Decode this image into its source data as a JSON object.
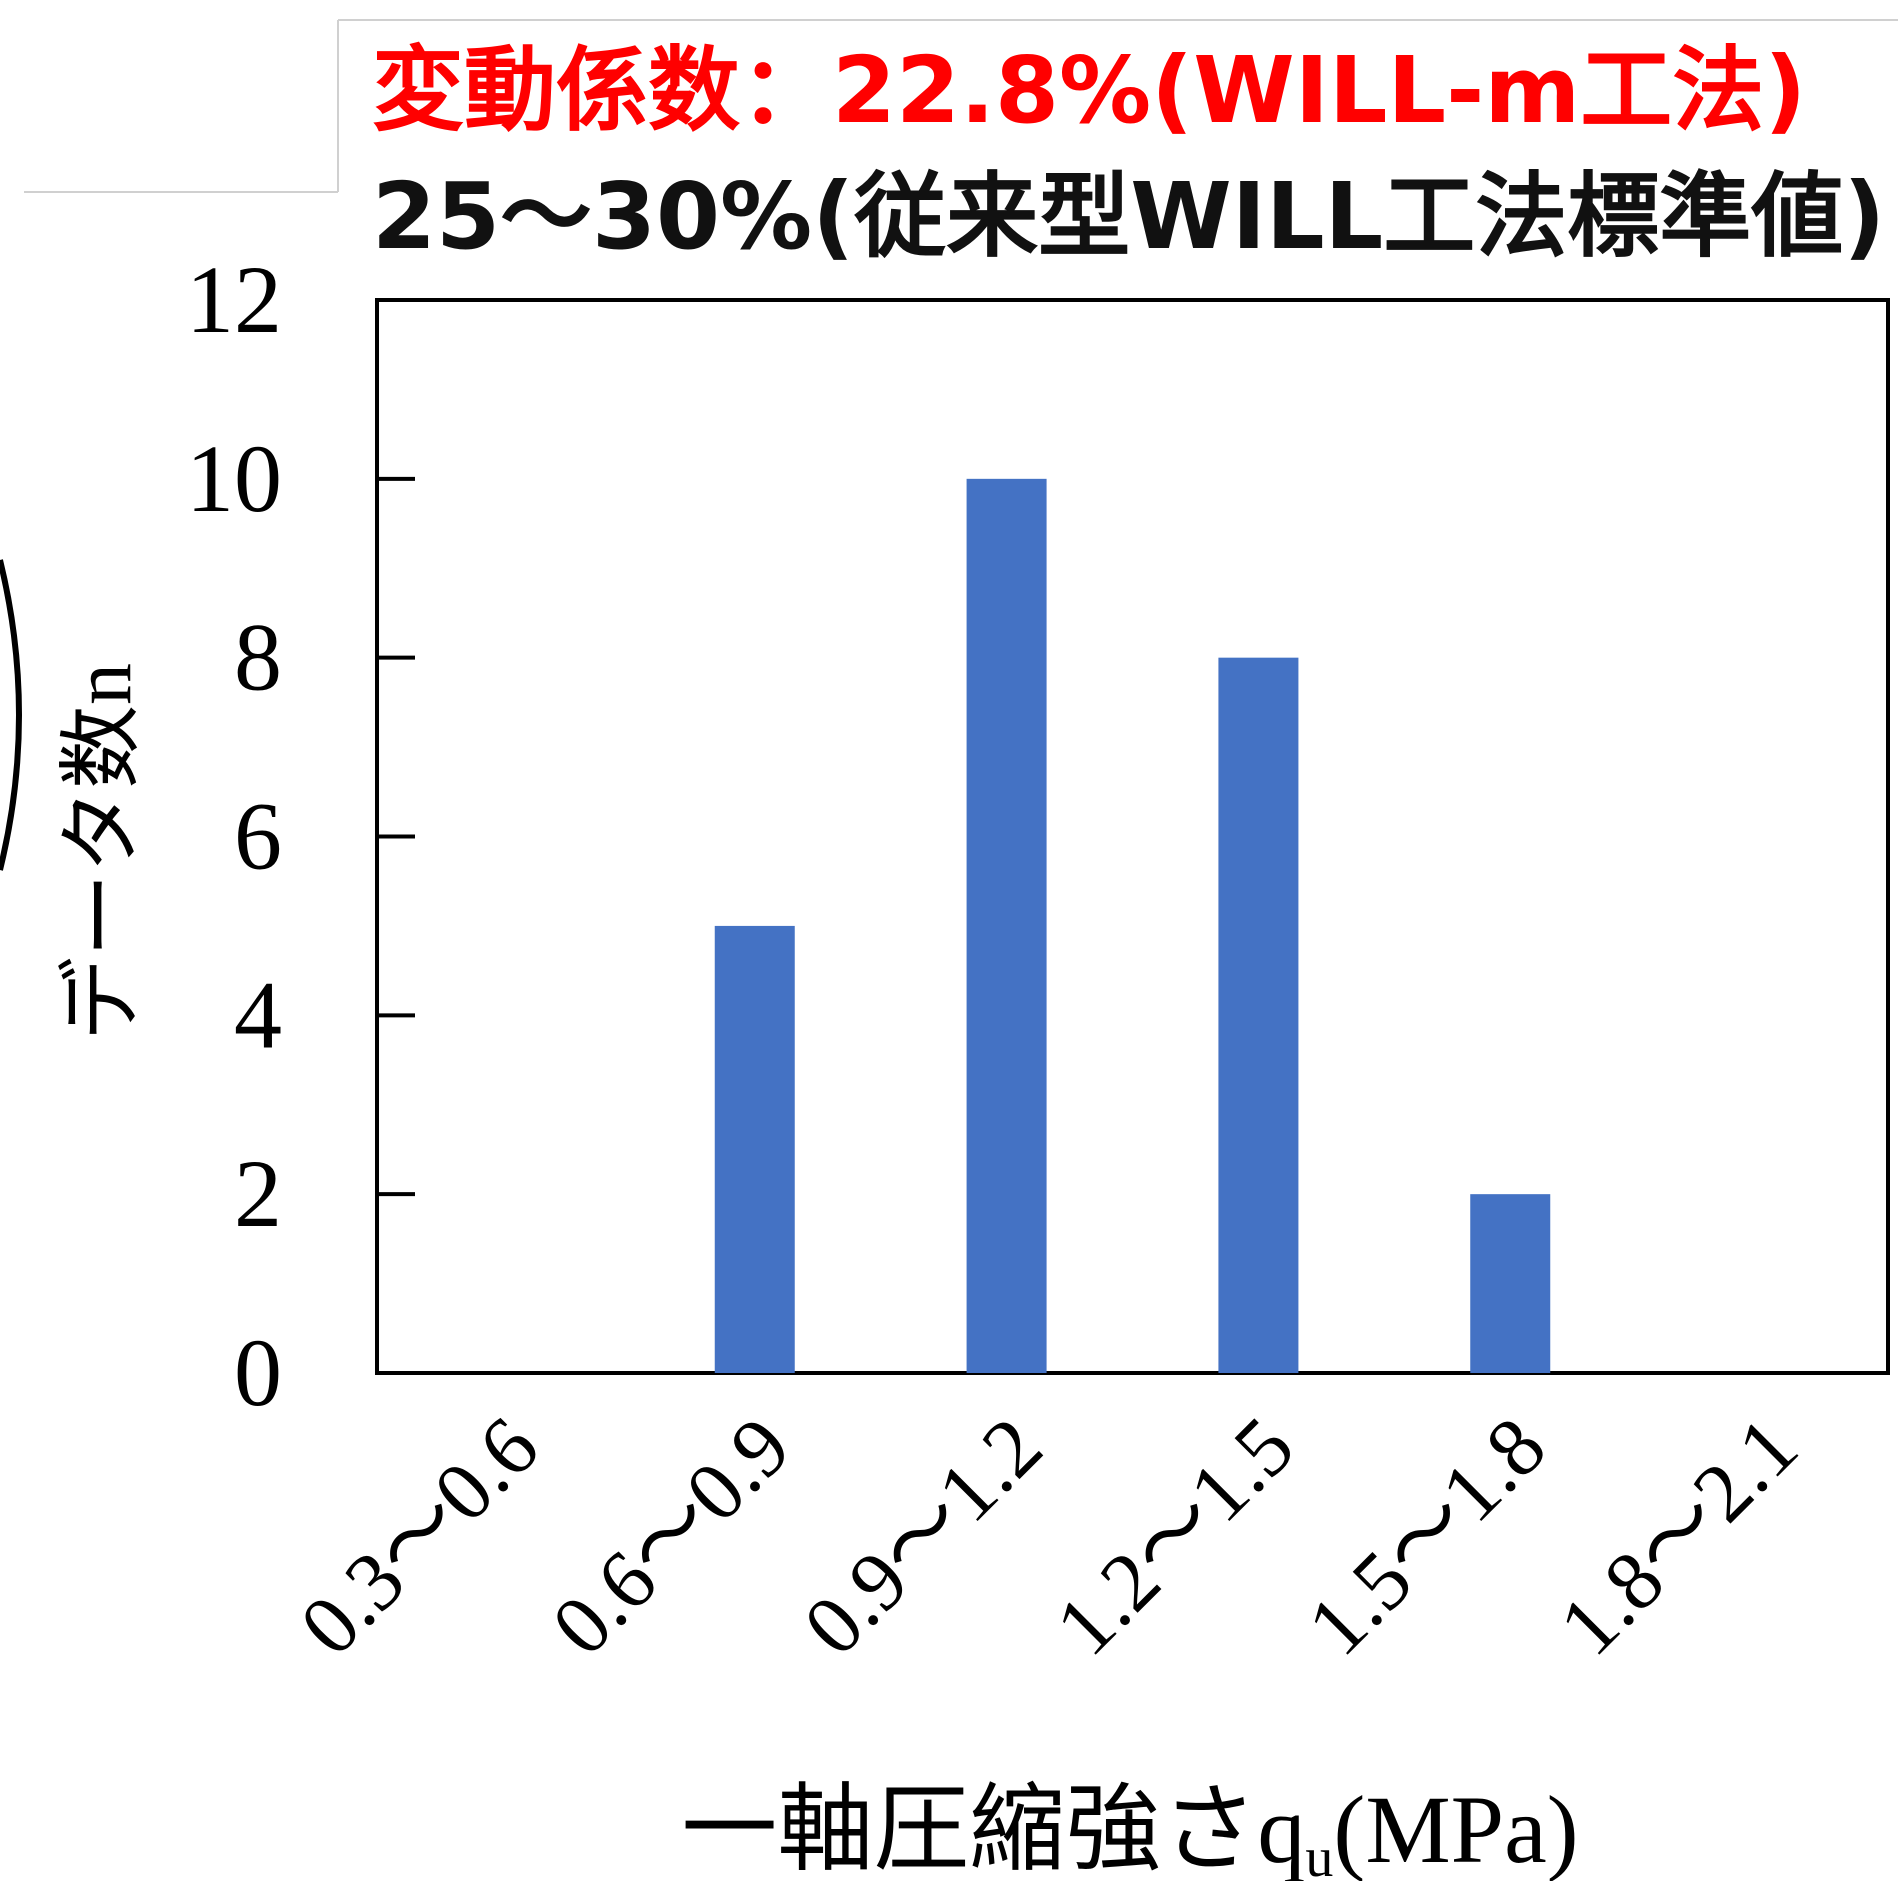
{
  "annotation": {
    "line1": "変動係数：22.8%(WILL-m工法)",
    "line2": "25〜30%(従来型WILL工法標準値)",
    "line1_color": "#ff0000",
    "line2_color": "#111111"
  },
  "chart_data": {
    "type": "bar",
    "categories": [
      "0.3〜0.6",
      "0.6〜0.9",
      "0.9〜1.2",
      "1.2〜1.5",
      "1.5〜1.8",
      "1.8〜2.1"
    ],
    "values": [
      0,
      5,
      10,
      8,
      2,
      0
    ],
    "ylabel": "データ数n",
    "xlabel": "一軸圧縮強さq",
    "xlabel_subscript": "u",
    "xlabel_unit": "(MPa)",
    "ylim": [
      0,
      12
    ],
    "yticks": [
      0,
      2,
      4,
      6,
      8,
      10,
      12
    ],
    "bar_color": "#4472c4",
    "grid": false,
    "legend": "none"
  }
}
